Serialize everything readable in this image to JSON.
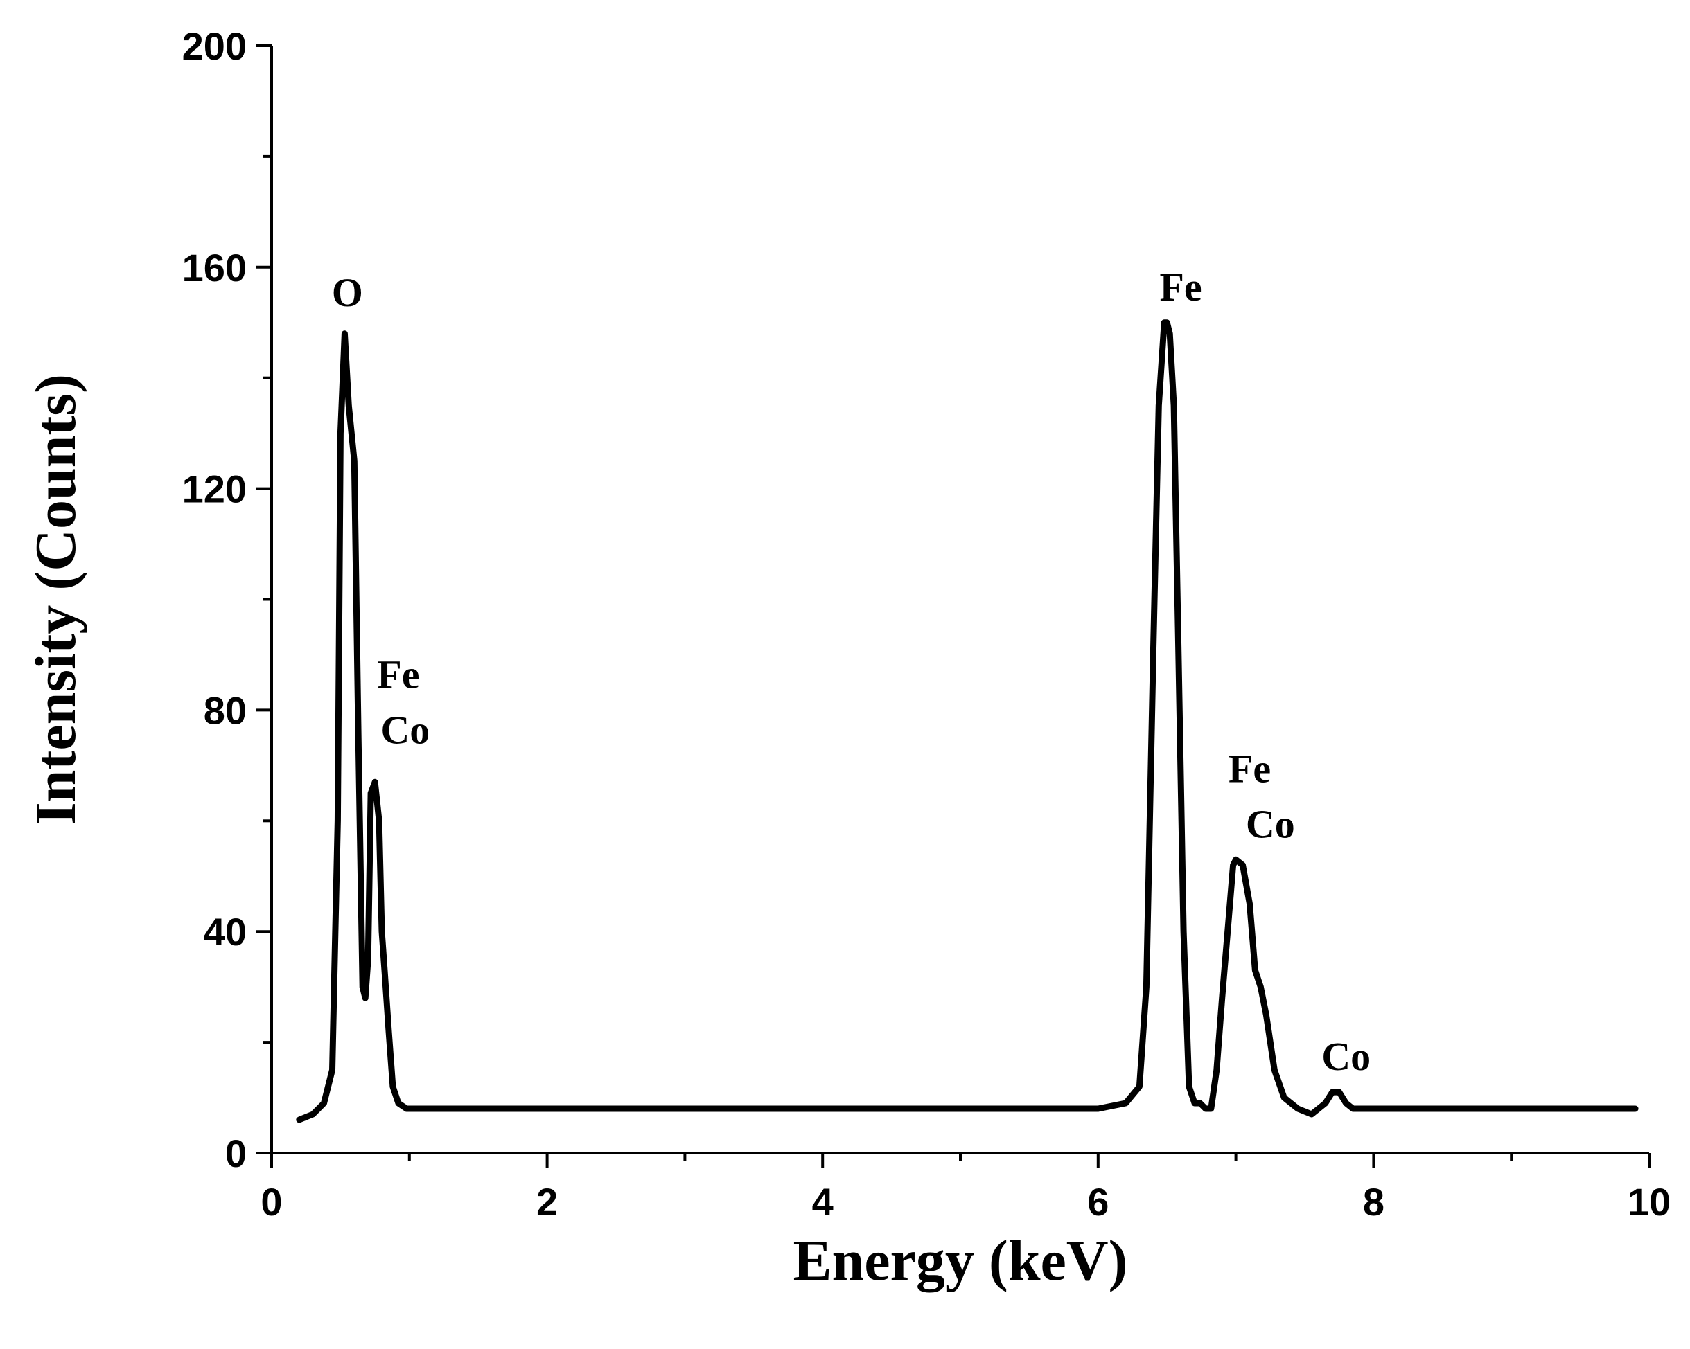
{
  "chart_data": {
    "type": "line",
    "title": "",
    "xlabel": "Energy (keV)",
    "ylabel": "Intensity (Counts)",
    "xlim": [
      0,
      10
    ],
    "ylim": [
      0,
      200
    ],
    "x_ticks": [
      "0",
      "2",
      "4",
      "6",
      "8",
      "10"
    ],
    "y_ticks": [
      "0",
      "40",
      "80",
      "120",
      "160",
      "200"
    ],
    "grid": false,
    "legend": "none",
    "line_color": "#000000",
    "series": [
      {
        "x": [
          0.2,
          0.3,
          0.38,
          0.44,
          0.48,
          0.5,
          0.53,
          0.56,
          0.6,
          0.63,
          0.66,
          0.68,
          0.7,
          0.72,
          0.75,
          0.78,
          0.8,
          0.82,
          0.85,
          0.88,
          0.92,
          0.98,
          1.1,
          1.5,
          2.0,
          3.0,
          4.0,
          5.0,
          5.5,
          6.0,
          6.2,
          6.3,
          6.35,
          6.4,
          6.44,
          6.48,
          6.5,
          6.52,
          6.55,
          6.58,
          6.62,
          6.66,
          6.7,
          6.74,
          6.78,
          6.82,
          6.86,
          6.9,
          6.94,
          6.98,
          7.0,
          7.05,
          7.1,
          7.14,
          7.18,
          7.22,
          7.28,
          7.35,
          7.45,
          7.55,
          7.65,
          7.7,
          7.75,
          7.8,
          7.85,
          8.0,
          8.5,
          9.0,
          9.5,
          9.9
        ],
        "y": [
          6,
          7,
          9,
          15,
          60,
          130,
          148,
          135,
          125,
          75,
          30,
          28,
          35,
          65,
          67,
          60,
          40,
          33,
          22,
          12,
          9,
          8,
          8,
          8,
          8,
          8,
          8,
          8,
          8,
          8,
          9,
          12,
          30,
          90,
          135,
          150,
          150,
          148,
          135,
          95,
          40,
          12,
          9,
          9,
          8,
          8,
          15,
          28,
          40,
          52,
          53,
          52,
          45,
          33,
          30,
          25,
          15,
          10,
          8,
          7,
          9,
          11,
          11,
          9,
          8,
          8,
          8,
          8,
          8,
          8
        ]
      }
    ],
    "annotations": [
      {
        "text": "O",
        "x": 0.55,
        "y": 153
      },
      {
        "text": "Fe",
        "x": 0.92,
        "y": 84
      },
      {
        "text": "Co",
        "x": 0.97,
        "y": 74
      },
      {
        "text": "Fe",
        "x": 6.6,
        "y": 154
      },
      {
        "text": "Fe",
        "x": 7.1,
        "y": 67
      },
      {
        "text": "Co",
        "x": 7.25,
        "y": 57
      },
      {
        "text": "Co",
        "x": 7.8,
        "y": 15
      }
    ]
  }
}
